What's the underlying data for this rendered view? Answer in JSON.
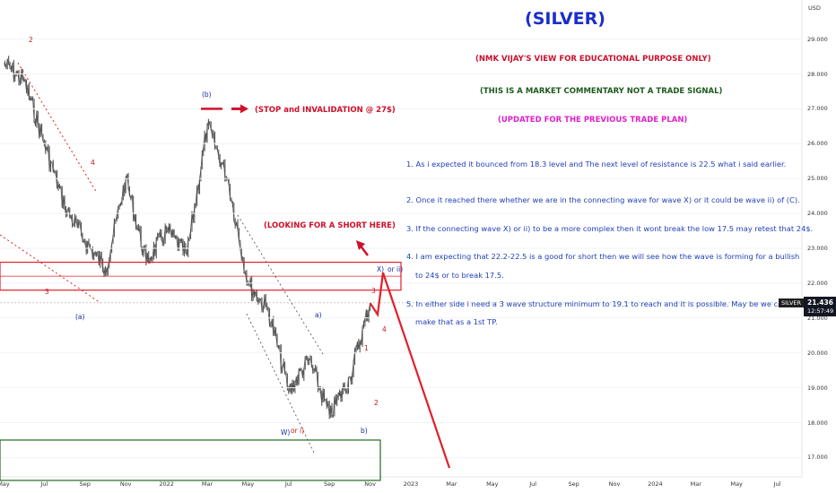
{
  "chart_data": {
    "type": "line",
    "title": "(SILVER)",
    "currency": "USD",
    "symbol": "SILVER",
    "current_price": "21.436",
    "countdown": "12:57:49",
    "xlabel": "",
    "ylabel": "",
    "ylim": [
      16.5,
      29.5
    ],
    "y_ticks": [
      "29.000",
      "28.000",
      "27.000",
      "26.000",
      "25.000",
      "24.000",
      "23.000",
      "22.000",
      "21.000",
      "20.000",
      "19.000",
      "18.000",
      "17.000"
    ],
    "x_ticks": [
      "May",
      "Jul",
      "Sep",
      "Nov",
      "2022",
      "Mar",
      "May",
      "Jul",
      "Sep",
      "Nov",
      "2023",
      "Mar",
      "May",
      "Jul",
      "Sep",
      "Nov",
      "2024",
      "Mar",
      "May",
      "Jul"
    ],
    "series": [
      {
        "x": [
          "2021-05",
          "2021-06",
          "2021-07",
          "2021-08",
          "2021-09",
          "2021-10",
          "2021-11",
          "2021-12",
          "2022-01",
          "2022-02",
          "2022-03",
          "2022-04",
          "2022-05",
          "2022-06",
          "2022-07",
          "2022-08",
          "2022-09",
          "2022-10",
          "2022-11"
        ],
        "values": [
          28.3,
          27.8,
          26.0,
          24.2,
          23.2,
          22.4,
          25.0,
          22.6,
          23.5,
          22.8,
          26.5,
          25.0,
          22.0,
          21.2,
          18.9,
          19.8,
          18.2,
          19.3,
          21.43
        ]
      }
    ],
    "projection": {
      "values": [
        21.1,
        22.3,
        16.7
      ]
    },
    "levels": {
      "stop": "27.0",
      "zone_low": "21.8",
      "zone_high": "22.6",
      "support": "17.5"
    }
  },
  "notes": {
    "header1": "(NMK VIJAY'S VIEW FOR EDUCATIONAL PURPOSE ONLY)",
    "header2": "(THIS IS A MARKET COMMENTARY NOT A TRADE SIGNAL)",
    "header3": "(UPDATED FOR THE PREVIOUS TRADE PLAN)",
    "p1": "1. As i expected it bounced from 18.3 level and The next level of resistance is 22.5 what i said earlier.",
    "p2": "2. Once it reached there whether we are in the connecting wave for wave X) or it could be wave ii) of (C).",
    "p3": "3. If the connecting wave X) or ii) to be a more complex then it wont break the low 17.5 may retest that 24$.",
    "p4": "4. I am expecting that 22.2-22.5 is a good for short then we will see how the wave is forming for a bullish",
    "p4b": "to 24$ or to break 17.5.",
    "p5": "5. In either side i need a 3 wave structure minimum to 19.1 to reach and it is possible. May be we can",
    "p5b": "make that as a 1st TP.",
    "stop": "(STOP and INVALIDATION @ 27$)",
    "short": "(LOOKING FOR A SHORT HERE)"
  },
  "wave_labels": {
    "top2": "2",
    "w4": "4",
    "w3": "3",
    "a_paren": "(a)",
    "b_paren": "(b)",
    "a_small": "a)",
    "b_small": "b)",
    "W": "W)",
    "or_i": "or i)",
    "X": "X)",
    "or_ii": "or ii)",
    "r1": "1",
    "r2": "2",
    "r3": "3",
    "r4": "4"
  },
  "colors": {
    "price": "#555555",
    "zone": "#e0202a",
    "green_box": "#1e6a1e",
    "arrow": "#d0102a",
    "trend": "#e02020",
    "title": "#1a2fc8"
  }
}
